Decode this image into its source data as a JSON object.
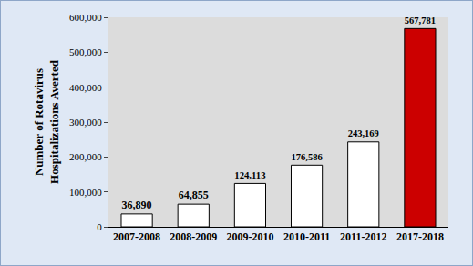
{
  "chart_data": {
    "type": "bar",
    "ylabel": "Number of Rotavirus\nHospitalizations Averted",
    "categories": [
      "2007-2008",
      "2008-2009",
      "2009-2010",
      "2010-2011",
      "2011-2012",
      "2017-2018"
    ],
    "values": [
      36890,
      64855,
      124113,
      176586,
      243169,
      567781
    ],
    "value_labels": [
      "36,890",
      "64,855",
      "124,113",
      "176,586",
      "243,169",
      "567,781"
    ],
    "colors": [
      "#ffffff",
      "#ffffff",
      "#ffffff",
      "#ffffff",
      "#ffffff",
      "#cc0000"
    ],
    "ylim": [
      0,
      600000
    ],
    "yticks": [
      0,
      {
        "value": 100000,
        "label": "100,000"
      },
      {
        "value": 200000,
        "label": "200,000"
      },
      {
        "value": 300000,
        "label": "300,000"
      },
      {
        "value": 400000,
        "label": "400,000"
      },
      {
        "value": 500000,
        "label": "500,000"
      },
      {
        "value": 600000,
        "label": "600,000"
      }
    ],
    "grid": false,
    "data_labels": true
  }
}
